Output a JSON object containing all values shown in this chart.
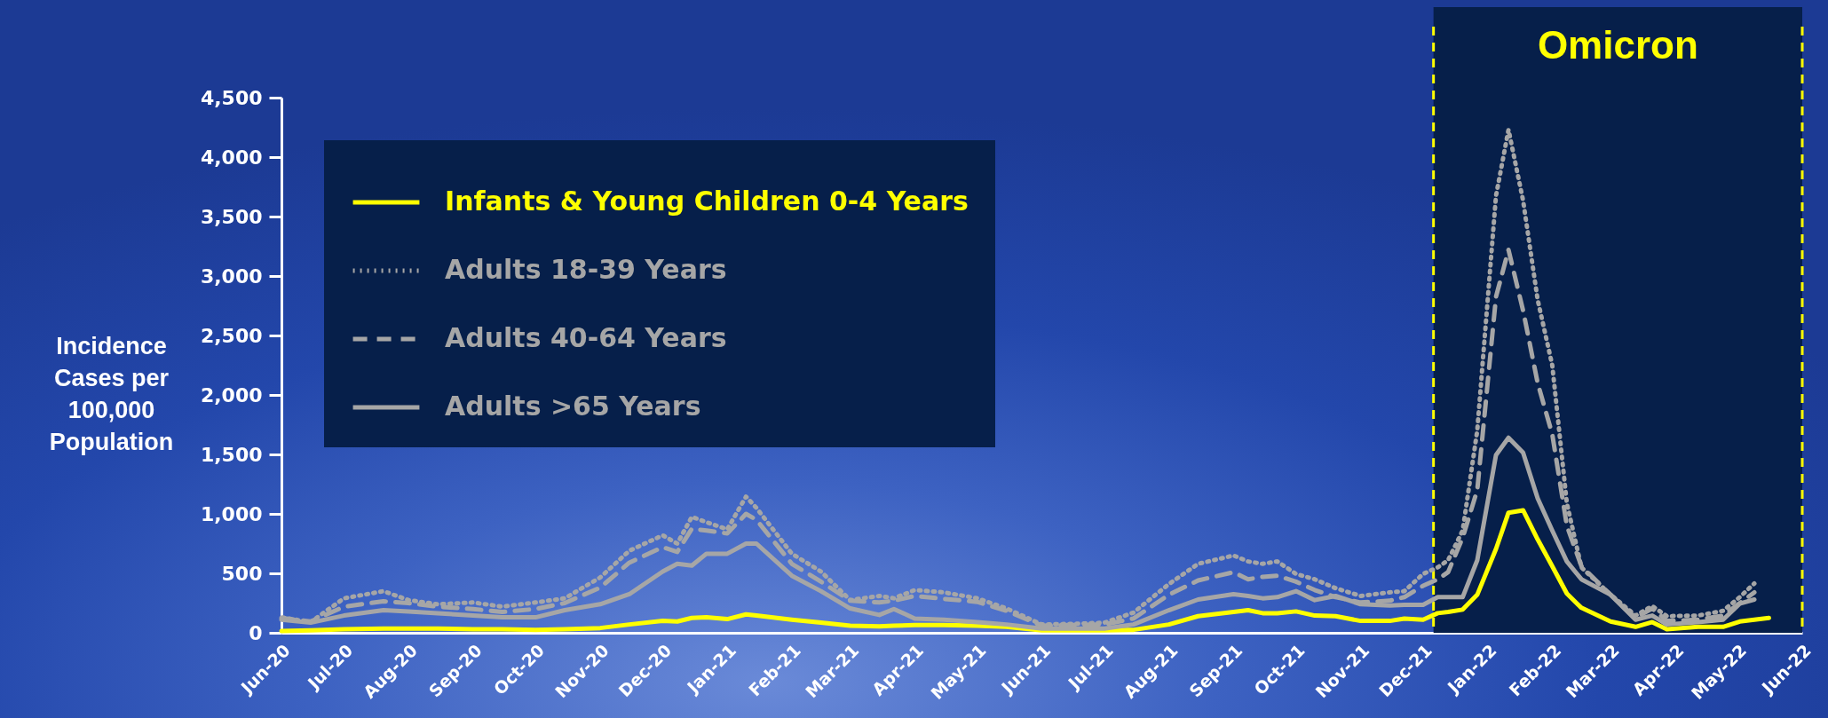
{
  "chart_data": {
    "type": "line",
    "ylabel": "Incidence Cases per 100,000 Population",
    "x": [
      "2020-06-01",
      "2020-06-15",
      "2020-07-01",
      "2020-07-20",
      "2020-08-01",
      "2020-08-15",
      "2020-09-01",
      "2020-09-15",
      "2020-10-01",
      "2020-10-15",
      "2020-11-01",
      "2020-11-15",
      "2020-12-01",
      "2020-12-08",
      "2020-12-15",
      "2020-12-22",
      "2021-01-01",
      "2021-01-10",
      "2021-01-15",
      "2021-02-01",
      "2021-02-15",
      "2021-03-01",
      "2021-03-15",
      "2021-03-22",
      "2021-04-01",
      "2021-04-15",
      "2021-05-01",
      "2021-05-15",
      "2021-06-01",
      "2021-06-15",
      "2021-07-01",
      "2021-07-15",
      "2021-08-01",
      "2021-08-15",
      "2021-09-01",
      "2021-09-08",
      "2021-09-15",
      "2021-09-22",
      "2021-10-01",
      "2021-10-10",
      "2021-10-20",
      "2021-11-01",
      "2021-11-15",
      "2021-11-22",
      "2021-12-01",
      "2021-12-08",
      "2021-12-13",
      "2021-12-20",
      "2021-12-27",
      "2022-01-05",
      "2022-01-11",
      "2022-01-18",
      "2022-01-25",
      "2022-02-01",
      "2022-02-08",
      "2022-02-15",
      "2022-03-01",
      "2022-03-13",
      "2022-03-21",
      "2022-03-28",
      "2022-04-12",
      "2022-04-24",
      "2022-05-02",
      "2022-05-09",
      "2022-05-16"
    ],
    "series": [
      {
        "name": "Infants & Young Children 0-4 Years",
        "color": "#ffff00",
        "line_style": "solid",
        "values": [
          15,
          20,
          30,
          35,
          35,
          35,
          30,
          30,
          25,
          30,
          40,
          70,
          100,
          95,
          125,
          130,
          115,
          155,
          145,
          110,
          85,
          60,
          55,
          60,
          65,
          65,
          60,
          50,
          20,
          20,
          20,
          25,
          70,
          140,
          175,
          190,
          165,
          165,
          180,
          145,
          140,
          100,
          100,
          120,
          110,
          165,
          175,
          195,
          320,
          705,
          1010,
          1030,
          785,
          560,
          330,
          210,
          95,
          50,
          90,
          30,
          50,
          50,
          95,
          110,
          125
        ]
      },
      {
        "name": "Adults 18-39 Years",
        "color": "#a6a6a6",
        "line_style": "dotted",
        "values": [
          130,
          90,
          290,
          350,
          275,
          240,
          255,
          220,
          255,
          290,
          465,
          690,
          820,
          750,
          975,
          930,
          870,
          1145,
          1050,
          665,
          515,
          275,
          310,
          290,
          360,
          340,
          290,
          205,
          70,
          75,
          85,
          170,
          410,
          580,
          650,
          600,
          580,
          600,
          495,
          450,
          375,
          310,
          340,
          350,
          495,
          550,
          610,
          860,
          1700,
          3675,
          4230,
          3635,
          2800,
          2250,
          1090,
          550,
          320,
          145,
          225,
          140,
          145,
          185,
          300,
          415,
          null
        ]
      },
      {
        "name": "Adults 40-64 Years",
        "color": "#a6a6a6",
        "line_style": "dashed",
        "values": [
          125,
          95,
          220,
          265,
          250,
          220,
          200,
          175,
          200,
          250,
          380,
          590,
          720,
          680,
          875,
          860,
          835,
          1000,
          950,
          580,
          430,
          270,
          255,
          270,
          310,
          285,
          260,
          185,
          60,
          65,
          70,
          120,
          320,
          440,
          510,
          450,
          470,
          480,
          430,
          360,
          300,
          255,
          270,
          300,
          395,
          450,
          510,
          800,
          1200,
          2825,
          3220,
          2710,
          2100,
          1670,
          900,
          560,
          320,
          125,
          205,
          100,
          110,
          145,
          250,
          340,
          null
        ]
      },
      {
        "name": "Adults >65 Years",
        "color": "#a6a6a6",
        "line_style": "solid",
        "values": [
          110,
          85,
          145,
          190,
          180,
          165,
          145,
          130,
          130,
          190,
          240,
          325,
          515,
          580,
          565,
          665,
          665,
          750,
          750,
          480,
          350,
          205,
          150,
          200,
          120,
          110,
          90,
          70,
          35,
          35,
          35,
          70,
          190,
          280,
          325,
          310,
          290,
          300,
          350,
          275,
          310,
          240,
          230,
          235,
          235,
          300,
          300,
          300,
          610,
          1495,
          1640,
          1515,
          1130,
          860,
          600,
          450,
          320,
          110,
          145,
          70,
          90,
          110,
          245,
          280,
          null
        ]
      }
    ],
    "xlim": [
      "2020-06-01",
      "2022-06-01"
    ],
    "xticks": [
      {
        "value": "2020-06-01",
        "label": "Jun-20"
      },
      {
        "value": "2020-07-01",
        "label": "Jul-20"
      },
      {
        "value": "2020-08-01",
        "label": "Aug-20"
      },
      {
        "value": "2020-09-01",
        "label": "Sep-20"
      },
      {
        "value": "2020-10-01",
        "label": "Oct-20"
      },
      {
        "value": "2020-11-01",
        "label": "Nov-20"
      },
      {
        "value": "2020-12-01",
        "label": "Dec-20"
      },
      {
        "value": "2021-01-01",
        "label": "Jan-21"
      },
      {
        "value": "2021-02-01",
        "label": "Feb-21"
      },
      {
        "value": "2021-03-01",
        "label": "Mar-21"
      },
      {
        "value": "2021-04-01",
        "label": "Apr-21"
      },
      {
        "value": "2021-05-01",
        "label": "May-21"
      },
      {
        "value": "2021-06-01",
        "label": "Jun-21"
      },
      {
        "value": "2021-07-01",
        "label": "Jul-21"
      },
      {
        "value": "2021-08-01",
        "label": "Aug-21"
      },
      {
        "value": "2021-09-01",
        "label": "Sep-21"
      },
      {
        "value": "2021-10-01",
        "label": "Oct-21"
      },
      {
        "value": "2021-11-01",
        "label": "Nov-21"
      },
      {
        "value": "2021-12-01",
        "label": "Dec-21"
      },
      {
        "value": "2022-01-01",
        "label": "Jan-22"
      },
      {
        "value": "2022-02-01",
        "label": "Feb-22"
      },
      {
        "value": "2022-03-01",
        "label": "Mar-22"
      },
      {
        "value": "2022-04-01",
        "label": "Apr-22"
      },
      {
        "value": "2022-05-01",
        "label": "May-22"
      },
      {
        "value": "2022-06-01",
        "label": "Jun-22"
      }
    ],
    "ylim": [
      0,
      4500
    ],
    "yticks": [
      0,
      500,
      {
        "value": 1000,
        "label": "1,000"
      },
      {
        "value": 1500,
        "label": "1,500"
      },
      {
        "value": 2000,
        "label": "2,000"
      },
      {
        "value": 2500,
        "label": "2,500"
      },
      {
        "value": 3000,
        "label": "3,000"
      },
      {
        "value": 3500,
        "label": "3,500"
      },
      {
        "value": 4000,
        "label": "4,000"
      },
      {
        "value": 4500,
        "label": "4,500"
      }
    ],
    "bands": [
      {
        "axis": "x",
        "from": "2021-12-06",
        "to": "2022-06-01",
        "label": "Omicron",
        "color": "#061f4a"
      }
    ],
    "legend": "top left"
  }
}
